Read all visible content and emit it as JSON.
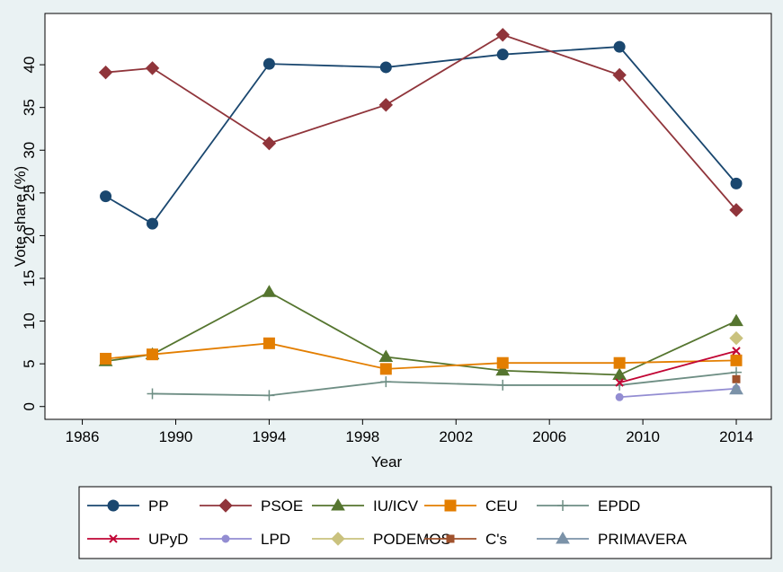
{
  "chart_data": {
    "type": "line",
    "x_label": "Year",
    "y_label": "Vote share (%)",
    "x": [
      1987,
      1989,
      1994,
      1999,
      2004,
      2009,
      2014
    ],
    "xlim": [
      1984.4,
      2015.5
    ],
    "xticks": [
      1986,
      1990,
      1994,
      1998,
      2002,
      2006,
      2010,
      2014
    ],
    "ylim": [
      -1.5,
      46
    ],
    "yticks": [
      0,
      5,
      10,
      15,
      20,
      25,
      30,
      35,
      40
    ],
    "grid": false,
    "legend_position": "bottom",
    "series": [
      {
        "name": "PP",
        "color": "#1a476f",
        "marker": "circle",
        "values": [
          24.6,
          21.4,
          40.1,
          39.7,
          41.2,
          42.1,
          26.1
        ]
      },
      {
        "name": "PSOE",
        "color": "#90353b",
        "marker": "diamond",
        "values": [
          39.1,
          39.6,
          30.8,
          35.3,
          43.5,
          38.8,
          23.0
        ]
      },
      {
        "name": "IU/ICV",
        "color": "#55752f",
        "marker": "triangle",
        "values": [
          5.3,
          6.1,
          13.4,
          5.8,
          4.2,
          3.7,
          10.0
        ]
      },
      {
        "name": "CEU",
        "color": "#e37e00",
        "marker": "square",
        "values": [
          5.6,
          6.1,
          7.4,
          4.4,
          5.1,
          5.1,
          5.4
        ]
      },
      {
        "name": "EPDD",
        "color": "#6e8e84",
        "marker": "plus",
        "values": [
          null,
          1.5,
          1.3,
          2.9,
          2.5,
          2.5,
          4.0
        ]
      },
      {
        "name": "UPyD",
        "color": "#c10534",
        "marker": "x",
        "values": [
          null,
          null,
          null,
          null,
          null,
          2.8,
          6.5
        ]
      },
      {
        "name": "LPD",
        "color": "#938dd2",
        "marker": "smallcircle",
        "values": [
          null,
          null,
          null,
          null,
          null,
          1.1,
          2.1
        ]
      },
      {
        "name": "PODEMOS",
        "color": "#cac27e",
        "marker": "diamond",
        "values": [
          null,
          null,
          null,
          null,
          null,
          null,
          8.0
        ]
      },
      {
        "name": "C's",
        "color": "#a0522d",
        "marker": "smallsquare",
        "values": [
          null,
          null,
          null,
          null,
          null,
          null,
          3.2
        ]
      },
      {
        "name": "PRIMAVERA",
        "color": "#7b92a8",
        "marker": "triangle",
        "values": [
          null,
          null,
          null,
          null,
          null,
          null,
          2.0
        ]
      }
    ]
  }
}
